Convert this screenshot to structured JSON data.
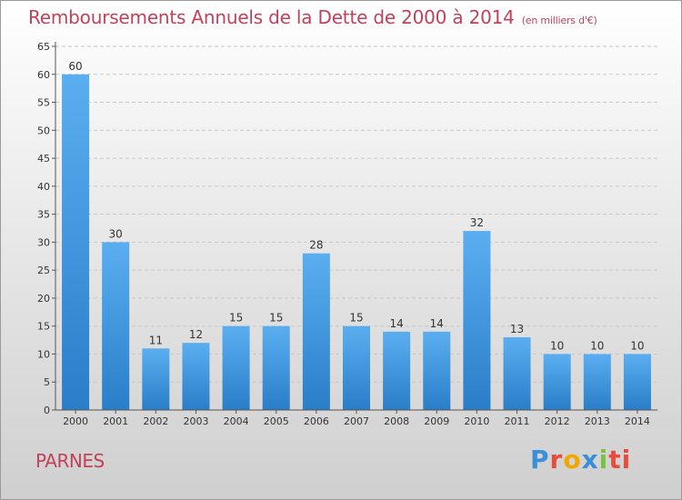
{
  "header": {
    "title": "Remboursements Annuels de la Dette de 2000 à 2014",
    "subtitle": "(en milliers d'€)"
  },
  "footer": {
    "location": "PARNES",
    "brand": [
      "P",
      "r",
      "o",
      "x",
      "i",
      "ti"
    ]
  },
  "colors": {
    "title": "#c2415b",
    "bar_light": "#5aaef0",
    "bar_dark": "#2a7ec8"
  },
  "chart_data": {
    "type": "bar",
    "title": "Remboursements Annuels de la Dette de 2000 à 2014",
    "subtitle": "(en milliers d'€)",
    "categories": [
      "2000",
      "2001",
      "2002",
      "2003",
      "2004",
      "2005",
      "2006",
      "2007",
      "2008",
      "2009",
      "2010",
      "2011",
      "2012",
      "2013",
      "2014"
    ],
    "values": [
      60,
      30,
      11,
      12,
      15,
      15,
      28,
      15,
      14,
      14,
      32,
      13,
      10,
      10,
      10
    ],
    "ylim": [
      0,
      65
    ],
    "yticks": [
      0,
      5,
      10,
      15,
      20,
      25,
      30,
      35,
      40,
      45,
      50,
      55,
      60,
      65
    ],
    "grid": true,
    "data_labels": true
  }
}
